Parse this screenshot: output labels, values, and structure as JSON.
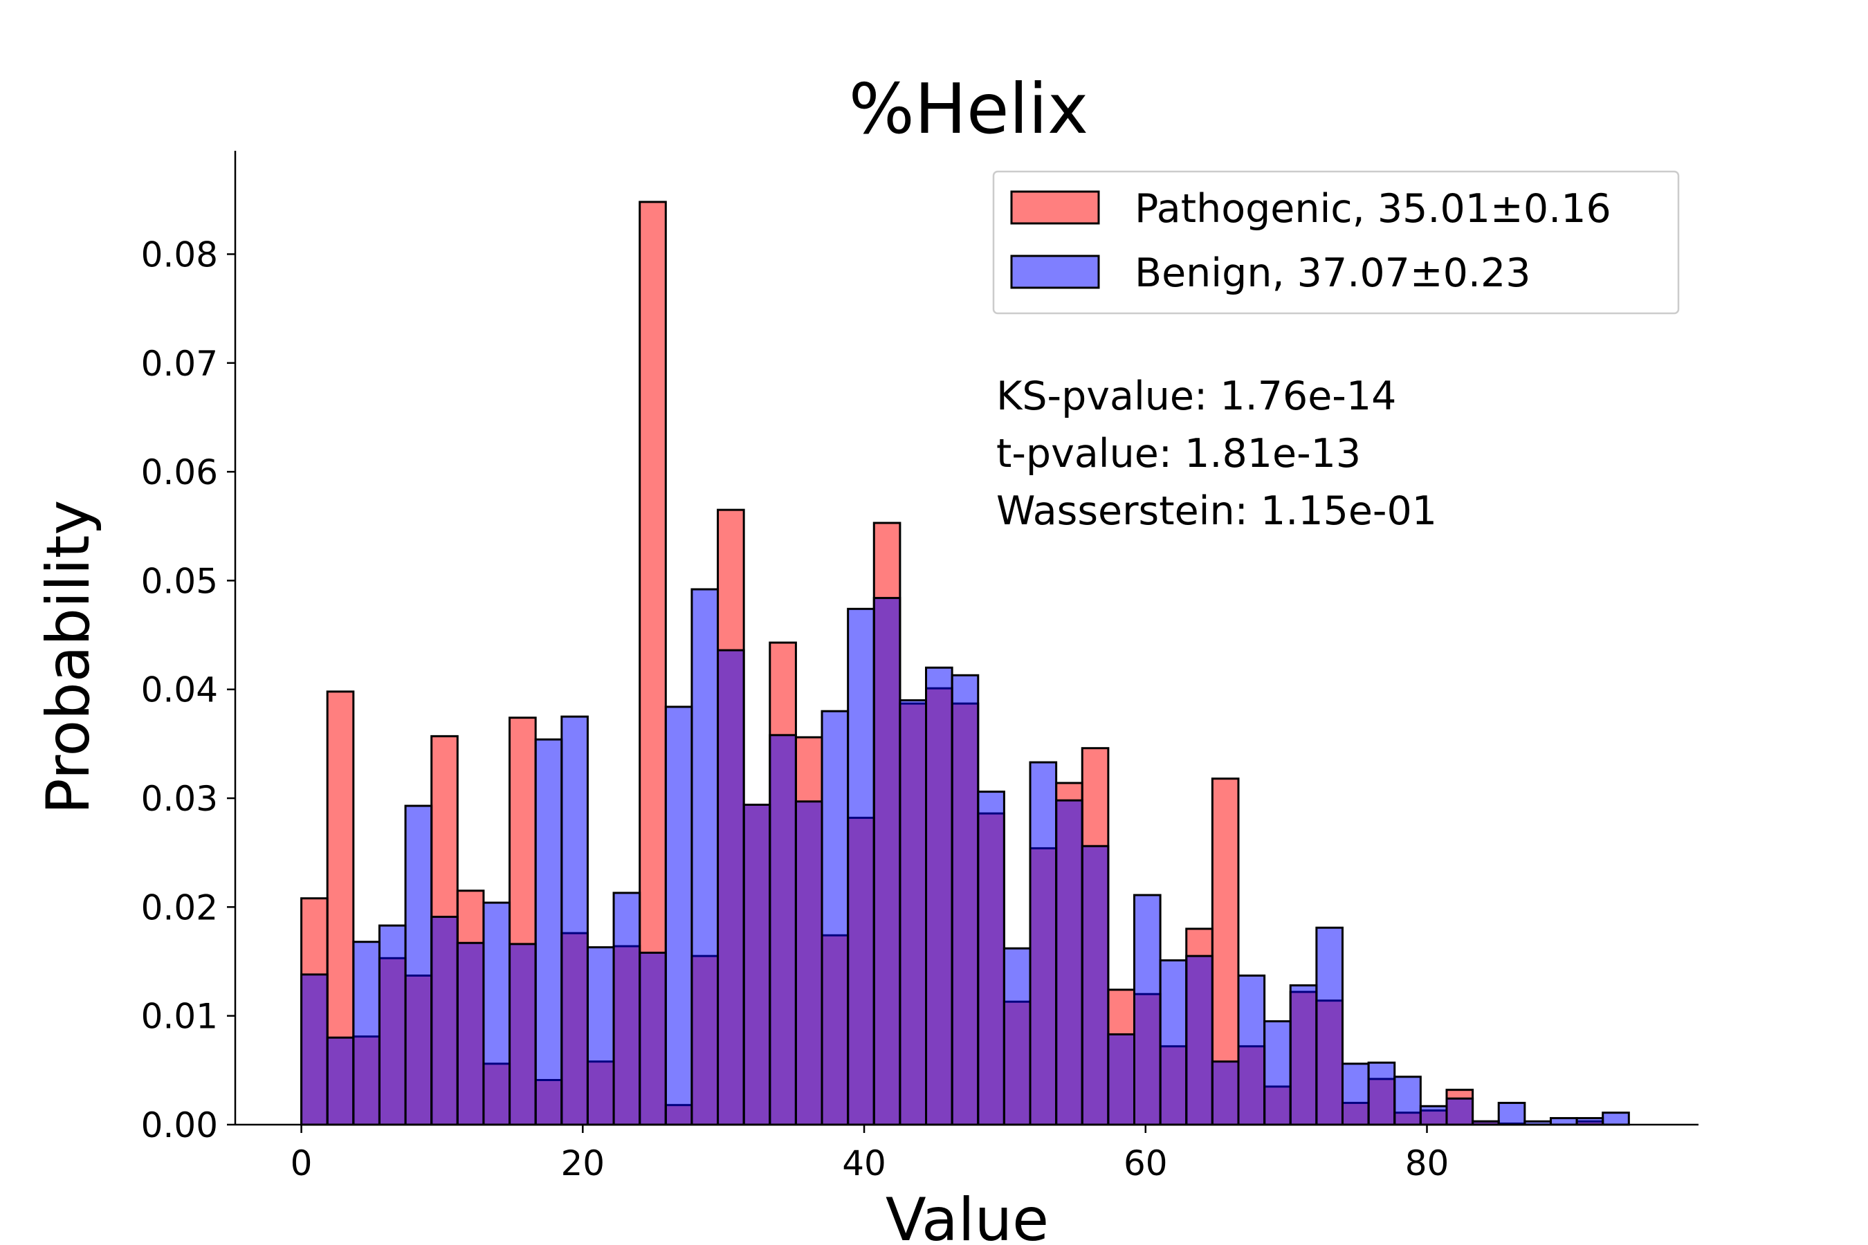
{
  "chart_data": {
    "type": "bar",
    "title": "%Helix",
    "xlabel": "Value",
    "ylabel": "Probability",
    "xlim": [
      -4.7,
      99.3
    ],
    "ylim": [
      0,
      0.0895
    ],
    "xticks": [
      0,
      20,
      40,
      60,
      80
    ],
    "yticks": [
      0.0,
      0.01,
      0.02,
      0.03,
      0.04,
      0.05,
      0.06,
      0.07,
      0.08
    ],
    "bin_width": 1.85,
    "legend_position": "top-right",
    "series": [
      {
        "name": "Pathogenic, 35.01±0.16",
        "color": "#ff0000",
        "alpha": 0.5,
        "x": [
          0,
          1.85,
          3.7,
          5.55,
          7.4,
          9.25,
          11.1,
          12.95,
          14.8,
          16.65,
          18.5,
          20.35,
          22.2,
          24.05,
          25.9,
          27.75,
          29.6,
          31.45,
          33.3,
          35.15,
          37.0,
          38.85,
          40.7,
          42.55,
          44.4,
          46.25,
          48.1,
          49.95,
          51.8,
          53.65,
          55.5,
          57.35,
          59.2,
          61.05,
          62.9,
          64.75,
          66.6,
          68.45,
          70.3,
          72.15,
          74.0,
          75.85,
          77.7,
          79.55,
          81.4,
          83.25,
          85.1,
          86.95,
          88.8,
          90.65,
          92.5
        ],
        "values": [
          0.0208,
          0.0398,
          0.0081,
          0.0153,
          0.0137,
          0.0357,
          0.0215,
          0.0056,
          0.0374,
          0.0041,
          0.0176,
          0.0058,
          0.0164,
          0.0848,
          0.0018,
          0.0155,
          0.0565,
          0.0294,
          0.0443,
          0.0356,
          0.0174,
          0.0282,
          0.0553,
          0.0387,
          0.0401,
          0.0387,
          0.0286,
          0.0113,
          0.0254,
          0.0314,
          0.0346,
          0.0124,
          0.012,
          0.0072,
          0.018,
          0.0318,
          0.0072,
          0.0035,
          0.0122,
          0.0114,
          0.002,
          0.0042,
          0.0011,
          0.0013,
          0.0032,
          0.0003,
          0.0001,
          0.0,
          0.0,
          0.0003,
          0.0
        ]
      },
      {
        "name": "Benign, 37.07±0.23",
        "color": "#0000ff",
        "alpha": 0.5,
        "x": [
          0,
          1.85,
          3.7,
          5.55,
          7.4,
          9.25,
          11.1,
          12.95,
          14.8,
          16.65,
          18.5,
          20.35,
          22.2,
          24.05,
          25.9,
          27.75,
          29.6,
          31.45,
          33.3,
          35.15,
          37.0,
          38.85,
          40.7,
          42.55,
          44.4,
          46.25,
          48.1,
          49.95,
          51.8,
          53.65,
          55.5,
          57.35,
          59.2,
          61.05,
          62.9,
          64.75,
          66.6,
          68.45,
          70.3,
          72.15,
          74.0,
          75.85,
          77.7,
          79.55,
          81.4,
          83.25,
          85.1,
          86.95,
          88.8,
          90.65,
          92.5
        ],
        "values": [
          0.0138,
          0.008,
          0.0168,
          0.0183,
          0.0293,
          0.0191,
          0.0167,
          0.0204,
          0.0166,
          0.0354,
          0.0375,
          0.0163,
          0.0213,
          0.0158,
          0.0384,
          0.0492,
          0.0436,
          0.0294,
          0.0358,
          0.0297,
          0.038,
          0.0474,
          0.0484,
          0.039,
          0.042,
          0.0413,
          0.0306,
          0.0162,
          0.0333,
          0.0298,
          0.0256,
          0.0083,
          0.0211,
          0.0151,
          0.0155,
          0.0058,
          0.0137,
          0.0095,
          0.0128,
          0.0181,
          0.0056,
          0.0057,
          0.0044,
          0.0017,
          0.0024,
          0.0003,
          0.002,
          0.0003,
          0.0006,
          0.0006,
          0.0011
        ]
      }
    ],
    "annotations": [
      "KS-pvalue: 1.76e-14",
      "t-pvalue: 1.81e-13",
      "Wasserstein: 1.15e-01"
    ]
  }
}
